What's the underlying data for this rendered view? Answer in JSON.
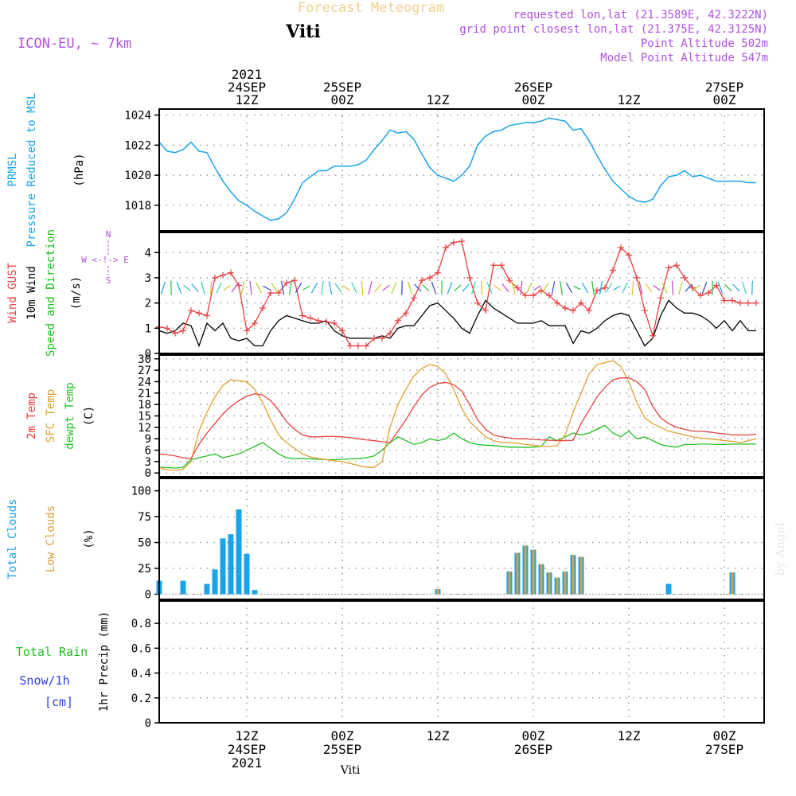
{
  "header": {
    "forecast_title": "Forecast Meteogram",
    "model_label": "ICON-EU, ~ 7km",
    "location": "Viti",
    "requested": "requested lon,lat (21.3589E, 42.3222N)",
    "grid_point": "grid point closest lon,lat (21.375E, 42.3125N)",
    "point_altitude": "Point Altitude 502m",
    "model_altitude": "Model Point Altitude 547m",
    "watermark": "by Angel",
    "footer_location": "Viti"
  },
  "time_axis": {
    "top_labels": [
      {
        "hour": 12,
        "lines": [
          "2021",
          "24SEP",
          "12Z"
        ]
      },
      {
        "hour": 24,
        "lines": [
          "25SEP",
          "00Z"
        ]
      },
      {
        "hour": 36,
        "lines": [
          "12Z"
        ]
      },
      {
        "hour": 48,
        "lines": [
          "26SEP",
          "00Z"
        ]
      },
      {
        "hour": 60,
        "lines": [
          "12Z"
        ]
      },
      {
        "hour": 72,
        "lines": [
          "27SEP",
          "00Z"
        ]
      }
    ],
    "bottom_labels": [
      {
        "hour": 12,
        "lines": [
          "12Z",
          "24SEP",
          "2021"
        ]
      },
      {
        "hour": 24,
        "lines": [
          "00Z",
          "25SEP"
        ]
      },
      {
        "hour": 36,
        "lines": [
          "12Z"
        ]
      },
      {
        "hour": 48,
        "lines": [
          "00Z",
          "26SEP"
        ]
      },
      {
        "hour": 60,
        "lines": [
          "12Z"
        ]
      },
      {
        "hour": 72,
        "lines": [
          "00Z",
          "27SEP"
        ]
      }
    ],
    "hour_range": [
      1,
      77
    ],
    "grid_hours": [
      12,
      24,
      36,
      48,
      60,
      72
    ]
  },
  "colors": {
    "pressure": "#1aa3e8",
    "gust": "#e84040",
    "wind": "#000000",
    "temp2m": "#e84040",
    "sfc": "#e0a030",
    "dewpt": "#20c020",
    "total_cloud": "#1aa3e8",
    "low_cloud": "#d8a040",
    "rain": "#20c020",
    "snow": "#3040e0",
    "purple": "#b050e0",
    "title": "#f0d090"
  },
  "chart_data": [
    {
      "type": "line",
      "panel": "pressure",
      "labels": {
        "l1": "PRMSL",
        "l2": "Pressure Reduced to MSL",
        "unit": "(hPa)"
      },
      "ylim": [
        1016.3,
        1024.4
      ],
      "yticks": [
        1018,
        1020,
        1022,
        1024
      ],
      "x": [
        1,
        2,
        3,
        4,
        5,
        6,
        7,
        8,
        9,
        10,
        11,
        12,
        13,
        14,
        15,
        16,
        17,
        18,
        19,
        20,
        21,
        22,
        23,
        24,
        25,
        26,
        27,
        28,
        29,
        30,
        31,
        32,
        33,
        34,
        35,
        36,
        37,
        38,
        39,
        40,
        41,
        42,
        43,
        44,
        45,
        46,
        47,
        48,
        49,
        50,
        51,
        52,
        53,
        54,
        55,
        56,
        57,
        58,
        59,
        60,
        61,
        62,
        63,
        64,
        65,
        66,
        67,
        68,
        69,
        70,
        71,
        72,
        73,
        74,
        75,
        76
      ],
      "series": [
        {
          "name": "PRMSL",
          "values": [
            1022.2,
            1021.6,
            1021.5,
            1021.7,
            1022.2,
            1021.6,
            1021.5,
            1020.5,
            1019.6,
            1018.9,
            1018.3,
            1018.0,
            1017.6,
            1017.3,
            1017.0,
            1017.1,
            1017.5,
            1018.4,
            1019.5,
            1019.9,
            1020.3,
            1020.3,
            1020.6,
            1020.6,
            1020.6,
            1020.7,
            1021.0,
            1021.7,
            1022.3,
            1023.0,
            1022.8,
            1022.9,
            1022.4,
            1021.4,
            1020.5,
            1020.0,
            1019.8,
            1019.6,
            1020.0,
            1020.6,
            1022.0,
            1022.6,
            1022.9,
            1023.0,
            1023.3,
            1023.4,
            1023.5,
            1023.5,
            1023.6,
            1023.8,
            1023.7,
            1023.6,
            1023.0,
            1023.1,
            1022.3,
            1021.3,
            1020.4,
            1019.6,
            1019.1,
            1018.6,
            1018.3,
            1018.2,
            1018.4,
            1019.3,
            1019.9,
            1020.0,
            1020.3,
            1019.9,
            1020.0,
            1019.8,
            1019.6,
            1019.6,
            1019.6,
            1019.6,
            1019.5,
            1019.5
          ]
        }
      ]
    },
    {
      "type": "line",
      "panel": "wind",
      "labels": {
        "l1": "Wind GUST",
        "l2": "10m Wind",
        "l3": "Speed and Direction",
        "unit": "(m/s)",
        "compass_n": "N",
        "compass_s": "S",
        "compass_w": "W <-!-> E"
      },
      "ylim": [
        0,
        4.8
      ],
      "yticks": [
        0,
        1,
        2,
        3,
        4
      ],
      "x": [
        1,
        2,
        3,
        4,
        5,
        6,
        7,
        8,
        9,
        10,
        11,
        12,
        13,
        14,
        15,
        16,
        17,
        18,
        19,
        20,
        21,
        22,
        23,
        24,
        25,
        26,
        27,
        28,
        29,
        30,
        31,
        32,
        33,
        34,
        35,
        36,
        37,
        38,
        39,
        40,
        41,
        42,
        43,
        44,
        45,
        46,
        47,
        48,
        49,
        50,
        51,
        52,
        53,
        54,
        55,
        56,
        57,
        58,
        59,
        60,
        61,
        62,
        63,
        64,
        65,
        66,
        67,
        68,
        69,
        70,
        71,
        72,
        73,
        74,
        75,
        76
      ],
      "series": [
        {
          "name": "Wind GUST",
          "values": [
            1.05,
            1.0,
            0.8,
            0.9,
            1.7,
            1.6,
            1.5,
            3.0,
            3.1,
            3.2,
            2.7,
            0.9,
            1.2,
            1.8,
            2.4,
            2.4,
            2.8,
            2.9,
            1.5,
            1.4,
            1.3,
            1.25,
            1.2,
            0.9,
            0.3,
            0.3,
            0.3,
            0.6,
            0.6,
            0.8,
            1.3,
            1.6,
            2.2,
            2.9,
            3.0,
            3.2,
            4.2,
            4.4,
            4.45,
            3.0,
            2.0,
            1.7,
            3.5,
            3.5,
            2.9,
            2.6,
            2.3,
            2.3,
            2.5,
            2.3,
            2.0,
            1.8,
            1.7,
            2.0,
            1.7,
            2.5,
            2.6,
            3.3,
            4.2,
            3.9,
            3.0,
            1.7,
            0.7,
            2.2,
            3.4,
            3.5,
            3.0,
            2.6,
            2.3,
            2.4,
            2.7,
            2.1,
            2.1,
            2.0,
            2.0,
            2.0
          ]
        },
        {
          "name": "10m Wind",
          "values": [
            0.9,
            0.8,
            0.9,
            1.2,
            1.1,
            0.3,
            1.2,
            0.9,
            1.2,
            0.6,
            0.5,
            0.6,
            0.3,
            0.3,
            0.9,
            1.3,
            1.5,
            1.4,
            1.3,
            1.2,
            1.2,
            1.3,
            0.9,
            0.7,
            0.6,
            0.6,
            0.6,
            0.6,
            0.7,
            0.6,
            1.0,
            1.1,
            1.1,
            1.5,
            1.9,
            2.0,
            1.7,
            1.4,
            1.0,
            0.8,
            1.5,
            2.1,
            1.8,
            1.6,
            1.4,
            1.2,
            1.2,
            1.2,
            1.3,
            1.1,
            1.1,
            1.1,
            0.4,
            0.9,
            0.8,
            1.0,
            1.3,
            1.5,
            1.6,
            1.5,
            0.9,
            0.3,
            0.6,
            1.5,
            2.1,
            1.8,
            1.6,
            1.6,
            1.5,
            1.3,
            1.0,
            1.3,
            0.9,
            1.3,
            0.9,
            0.9
          ]
        }
      ]
    },
    {
      "type": "line",
      "panel": "temperature",
      "labels": {
        "l1": "2m Temp",
        "l2": "SFC Temp",
        "l3": "dewpt Temp",
        "unit": "(C)"
      },
      "ylim": [
        -1,
        31
      ],
      "yticks": [
        0,
        3,
        6,
        9,
        12,
        15,
        18,
        21,
        24,
        27,
        30
      ],
      "x": [
        1,
        2,
        3,
        4,
        5,
        6,
        7,
        8,
        9,
        10,
        11,
        12,
        13,
        14,
        15,
        16,
        17,
        18,
        19,
        20,
        21,
        22,
        23,
        24,
        25,
        26,
        27,
        28,
        29,
        30,
        31,
        32,
        33,
        34,
        35,
        36,
        37,
        38,
        39,
        40,
        41,
        42,
        43,
        44,
        45,
        46,
        47,
        48,
        49,
        50,
        51,
        52,
        53,
        54,
        55,
        56,
        57,
        58,
        59,
        60,
        61,
        62,
        63,
        64,
        65,
        66,
        67,
        68,
        69,
        70,
        71,
        72,
        73,
        74,
        75,
        76
      ],
      "series": [
        {
          "name": "2m Temp",
          "values": [
            5.0,
            4.8,
            4.5,
            4.0,
            3.8,
            7.5,
            10.5,
            13.0,
            15.5,
            17.5,
            19.0,
            20.2,
            20.8,
            20.5,
            19.0,
            16.5,
            13.5,
            11.5,
            10.0,
            9.5,
            9.5,
            9.6,
            9.6,
            9.5,
            9.3,
            9.0,
            8.7,
            8.5,
            8.2,
            8.0,
            11.0,
            14.0,
            17.5,
            20.5,
            22.5,
            23.5,
            23.8,
            23.2,
            21.5,
            18.0,
            14.0,
            11.5,
            10.0,
            9.5,
            9.2,
            9.0,
            9.0,
            8.8,
            8.7,
            8.6,
            8.5,
            8.5,
            8.6,
            13.0,
            16.5,
            20.0,
            22.5,
            24.5,
            25.0,
            25.0,
            24.0,
            22.0,
            17.5,
            14.5,
            13.0,
            12.0,
            11.5,
            11.0,
            11.0,
            10.8,
            10.5,
            10.3,
            10.0,
            10.0,
            10.0,
            10.2
          ]
        },
        {
          "name": "SFC Temp",
          "values": [
            1.5,
            0.8,
            0.7,
            1.0,
            3.0,
            11.0,
            16.0,
            20.0,
            23.0,
            24.5,
            24.2,
            24.0,
            22.0,
            18.5,
            14.0,
            10.0,
            8.0,
            6.5,
            5.0,
            4.2,
            3.8,
            3.5,
            3.2,
            3.0,
            2.5,
            2.0,
            1.5,
            1.5,
            3.0,
            12.0,
            18.0,
            22.0,
            25.5,
            27.5,
            28.5,
            28.0,
            26.0,
            22.0,
            17.0,
            13.5,
            11.5,
            9.5,
            8.5,
            8.0,
            8.0,
            7.8,
            7.5,
            7.3,
            7.0,
            7.0,
            7.2,
            10.0,
            16.0,
            21.0,
            26.0,
            28.5,
            29.0,
            29.5,
            28.0,
            24.0,
            18.5,
            14.5,
            13.0,
            12.0,
            11.0,
            10.5,
            10.0,
            9.5,
            9.2,
            9.0,
            8.8,
            8.5,
            8.3,
            8.0,
            8.5,
            9.0
          ]
        },
        {
          "name": "dewpt Temp",
          "values": [
            1.5,
            1.4,
            1.3,
            1.5,
            3.5,
            4.0,
            4.5,
            5.0,
            4.0,
            4.5,
            5.0,
            6.0,
            7.0,
            8.0,
            6.5,
            5.0,
            4.0,
            3.8,
            3.8,
            3.7,
            3.6,
            3.5,
            3.5,
            3.6,
            3.7,
            3.8,
            4.0,
            4.5,
            6.0,
            8.0,
            9.5,
            8.5,
            7.5,
            8.0,
            9.0,
            8.5,
            9.0,
            10.5,
            9.0,
            8.0,
            7.5,
            7.3,
            7.2,
            7.0,
            6.8,
            6.8,
            6.7,
            6.8,
            7.0,
            9.5,
            8.5,
            9.5,
            10.5,
            10.0,
            10.5,
            11.5,
            12.5,
            10.5,
            9.5,
            11.0,
            9.0,
            9.5,
            8.5,
            7.5,
            7.0,
            6.8,
            7.5,
            7.5,
            7.6,
            7.6,
            7.5,
            7.5,
            7.6,
            7.6,
            7.6,
            7.6
          ]
        }
      ]
    },
    {
      "type": "bar",
      "panel": "clouds",
      "labels": {
        "l1": "Total Clouds",
        "l2": "Low Clouds",
        "unit": "(%)"
      },
      "ylim": [
        -5,
        112
      ],
      "yticks": [
        0,
        25,
        50,
        75,
        100
      ],
      "x": [
        1,
        2,
        3,
        4,
        5,
        6,
        7,
        8,
        9,
        10,
        11,
        12,
        13,
        14,
        15,
        16,
        17,
        18,
        19,
        20,
        21,
        22,
        23,
        24,
        25,
        26,
        27,
        28,
        29,
        30,
        31,
        32,
        33,
        34,
        35,
        36,
        37,
        38,
        39,
        40,
        41,
        42,
        43,
        44,
        45,
        46,
        47,
        48,
        49,
        50,
        51,
        52,
        53,
        54,
        55,
        56,
        57,
        58,
        59,
        60,
        61,
        62,
        63,
        64,
        65,
        66,
        67,
        68,
        69,
        70,
        71,
        72,
        73,
        74,
        75,
        76
      ],
      "series": [
        {
          "name": "Total Clouds",
          "values": [
            13,
            0,
            0,
            13,
            0,
            0,
            10,
            24,
            54,
            58,
            82,
            39,
            4,
            0,
            0,
            0,
            0,
            0,
            0,
            0,
            0,
            0,
            0,
            0,
            0,
            0,
            0,
            0,
            0,
            0,
            0,
            0,
            0,
            0,
            0,
            5,
            0,
            0,
            0,
            0,
            0,
            0,
            0,
            0,
            22,
            40,
            47,
            43,
            29,
            21,
            16,
            22,
            38,
            36,
            0,
            0,
            0,
            0,
            0,
            0,
            0,
            0,
            0,
            0,
            10,
            0,
            0,
            0,
            0,
            0,
            0,
            0,
            21,
            0,
            0,
            0
          ]
        },
        {
          "name": "Low Clouds",
          "values": [
            0,
            0,
            0,
            0,
            0,
            0,
            0,
            0,
            0,
            0,
            0,
            0,
            0,
            0,
            0,
            0,
            0,
            0,
            0,
            0,
            0,
            0,
            0,
            0,
            0,
            0,
            0,
            0,
            0,
            0,
            0,
            0,
            0,
            0,
            0,
            5,
            0,
            0,
            0,
            0,
            0,
            0,
            0,
            0,
            22,
            40,
            47,
            43,
            29,
            21,
            16,
            22,
            38,
            36,
            0,
            0,
            0,
            0,
            0,
            0,
            0,
            0,
            0,
            0,
            0,
            0,
            0,
            0,
            0,
            0,
            0,
            0,
            21,
            0,
            0,
            0
          ]
        }
      ]
    },
    {
      "type": "bar",
      "panel": "precip",
      "labels": {
        "rain": "Total Rain",
        "snow": "Snow/1h",
        "snow_unit": "[cm]",
        "axis": "1hr Precip (mm)"
      },
      "ylim": [
        0,
        0.98
      ],
      "yticks": [
        0,
        0.2,
        0.4,
        0.6,
        0.8
      ],
      "ytick_labels": [
        "0",
        "0.2",
        "0.4",
        "0.6",
        "0.8"
      ],
      "series": [
        {
          "name": "Total Rain",
          "values": []
        }
      ]
    }
  ]
}
